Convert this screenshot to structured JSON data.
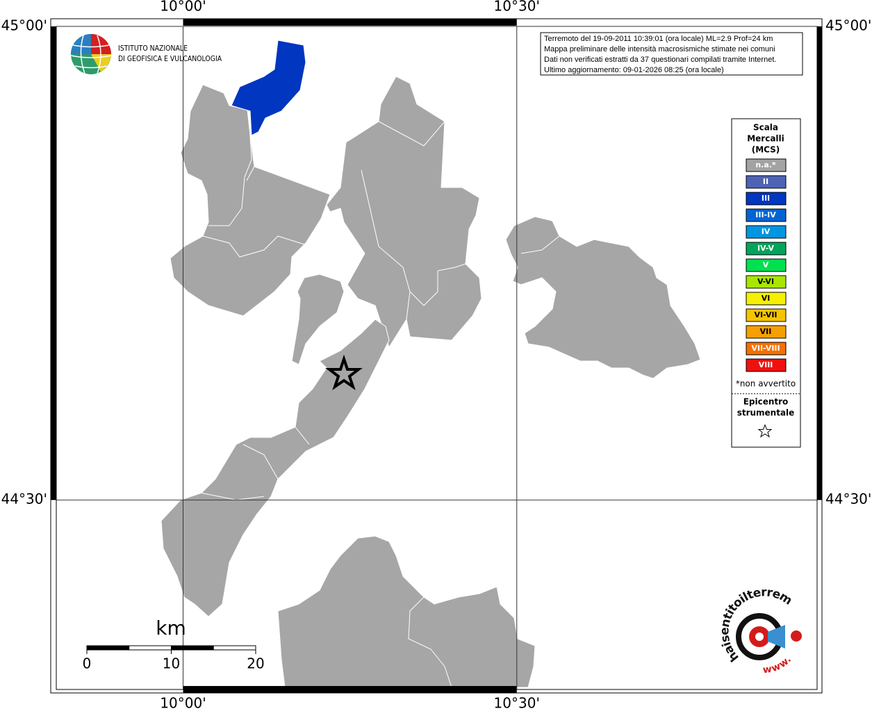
{
  "map": {
    "xlim": [
      9.81,
      10.95
    ],
    "ylim": [
      44.3,
      45.0
    ],
    "xticks": [
      {
        "value": 10,
        "label": "10°00'"
      },
      {
        "value": 10.5,
        "label": "10°30'"
      }
    ],
    "yticks": [
      {
        "value": 45,
        "label": "45°00'"
      },
      {
        "value": 44.5,
        "label": "44°30'"
      }
    ]
  },
  "info": [
    "Terremoto del 19-09-2011 10:39:01 (ora locale) ML=2.9 Prof=24 km",
    "Mappa preliminare delle intensità macrosismiche stimate nei comuni",
    "Dati non verificati estratti da 37 questionari compilati tramite Internet.",
    "Ultimo aggiornamento: 09-01-2026 08:25 (ora locale)"
  ],
  "ingv": [
    "ISTITUTO NAZIONALE",
    "DI GEOFISICA E VULCANOLOGIA"
  ],
  "legend": {
    "title": [
      "Scala",
      "Mercalli",
      "(MCS)"
    ],
    "items": [
      {
        "label": "n.a.*",
        "color": "#a3a3a3"
      },
      {
        "label": "II",
        "color": "#4f63b5"
      },
      {
        "label": "III",
        "color": "#0036c0"
      },
      {
        "label": "III-IV",
        "color": "#0065d2"
      },
      {
        "label": "IV",
        "color": "#0096e0"
      },
      {
        "label": "IV-V",
        "color": "#00a55a"
      },
      {
        "label": "V",
        "color": "#00e050"
      },
      {
        "label": "V-VI",
        "color": "#a8e600"
      },
      {
        "label": "VI",
        "color": "#f5f000"
      },
      {
        "label": "VI-VII",
        "color": "#f5c400"
      },
      {
        "label": "VII",
        "color": "#f5a000"
      },
      {
        "label": "VII-VIII",
        "color": "#f57000"
      },
      {
        "label": "VIII",
        "color": "#f01010"
      }
    ],
    "note": "*non avvertito",
    "epicenter": [
      "Epicentro",
      "strumentale"
    ]
  },
  "scale": {
    "unit": "km",
    "ticks": [
      0,
      10,
      20
    ]
  },
  "logo": {
    "text": "haisentitoilterremoto.it",
    "www": "www."
  }
}
